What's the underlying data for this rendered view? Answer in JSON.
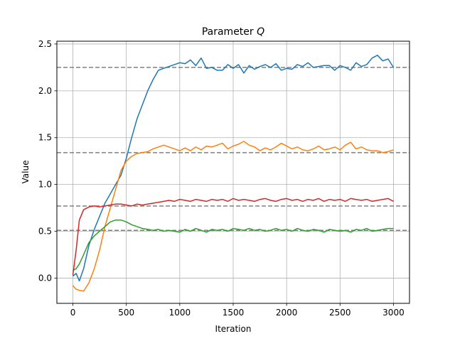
{
  "chart_data": {
    "type": "line",
    "title": "Parameter Q",
    "title_text": "Parameter ",
    "title_symbol": "Q",
    "xlabel": "Iteration",
    "ylabel": "Value",
    "xlim": [
      -150,
      3150
    ],
    "ylim": [
      -0.27,
      2.53
    ],
    "xticks": [
      0,
      500,
      1000,
      1500,
      2000,
      2500,
      3000
    ],
    "yticks": [
      0.0,
      0.5,
      1.0,
      1.5,
      2.0,
      2.5
    ],
    "xtick_labels": [
      "0",
      "500",
      "1000",
      "1500",
      "2000",
      "2500",
      "3000"
    ],
    "ytick_labels": [
      "0.0",
      "0.5",
      "1.0",
      "1.5",
      "2.0",
      "2.5"
    ],
    "grid": true,
    "reference_lines": [
      {
        "y": 2.25,
        "color": "#808080",
        "style": "dashed"
      },
      {
        "y": 1.34,
        "color": "#808080",
        "style": "dashed"
      },
      {
        "y": 0.77,
        "color": "#808080",
        "style": "dashed"
      },
      {
        "y": 0.51,
        "color": "#808080",
        "style": "dashed"
      }
    ],
    "series": [
      {
        "color": "#1f77b4",
        "x": [
          0,
          30,
          60,
          100,
          150,
          200,
          250,
          300,
          350,
          400,
          450,
          500,
          550,
          600,
          650,
          700,
          750,
          800,
          850,
          900,
          950,
          1000,
          1050,
          1100,
          1150,
          1200,
          1250,
          1300,
          1350,
          1400,
          1450,
          1500,
          1550,
          1600,
          1650,
          1700,
          1750,
          1800,
          1850,
          1900,
          1950,
          2000,
          2050,
          2100,
          2150,
          2200,
          2250,
          2300,
          2350,
          2400,
          2450,
          2500,
          2550,
          2600,
          2650,
          2700,
          2750,
          2800,
          2850,
          2900,
          2950,
          3000
        ],
        "y": [
          0.02,
          0.05,
          -0.03,
          0.1,
          0.35,
          0.52,
          0.66,
          0.8,
          0.9,
          1.0,
          1.1,
          1.28,
          1.5,
          1.7,
          1.85,
          2.0,
          2.12,
          2.22,
          2.24,
          2.26,
          2.28,
          2.3,
          2.29,
          2.33,
          2.27,
          2.35,
          2.24,
          2.25,
          2.22,
          2.22,
          2.28,
          2.24,
          2.28,
          2.19,
          2.27,
          2.23,
          2.26,
          2.28,
          2.25,
          2.29,
          2.22,
          2.24,
          2.23,
          2.28,
          2.26,
          2.3,
          2.25,
          2.26,
          2.27,
          2.27,
          2.22,
          2.27,
          2.25,
          2.22,
          2.3,
          2.26,
          2.28,
          2.35,
          2.38,
          2.32,
          2.34,
          2.25
        ]
      },
      {
        "color": "#ff7f0e",
        "x": [
          0,
          30,
          60,
          100,
          150,
          200,
          250,
          300,
          350,
          400,
          450,
          500,
          550,
          600,
          650,
          700,
          750,
          800,
          850,
          900,
          950,
          1000,
          1050,
          1100,
          1150,
          1200,
          1250,
          1300,
          1350,
          1400,
          1450,
          1500,
          1550,
          1600,
          1650,
          1700,
          1750,
          1800,
          1850,
          1900,
          1950,
          2000,
          2050,
          2100,
          2150,
          2200,
          2250,
          2300,
          2350,
          2400,
          2450,
          2500,
          2550,
          2600,
          2650,
          2700,
          2750,
          2800,
          2850,
          2900,
          2950,
          3000
        ],
        "y": [
          -0.08,
          -0.12,
          -0.13,
          -0.14,
          -0.05,
          0.1,
          0.3,
          0.55,
          0.75,
          0.95,
          1.15,
          1.25,
          1.3,
          1.33,
          1.34,
          1.35,
          1.38,
          1.4,
          1.42,
          1.4,
          1.38,
          1.36,
          1.39,
          1.36,
          1.4,
          1.37,
          1.41,
          1.4,
          1.42,
          1.44,
          1.38,
          1.41,
          1.43,
          1.46,
          1.42,
          1.4,
          1.36,
          1.39,
          1.37,
          1.4,
          1.44,
          1.41,
          1.38,
          1.4,
          1.37,
          1.36,
          1.38,
          1.41,
          1.37,
          1.38,
          1.4,
          1.37,
          1.42,
          1.45,
          1.38,
          1.4,
          1.37,
          1.36,
          1.36,
          1.34,
          1.35,
          1.37
        ]
      },
      {
        "color": "#2ca02c",
        "x": [
          0,
          30,
          60,
          100,
          150,
          200,
          250,
          300,
          350,
          400,
          450,
          500,
          550,
          600,
          650,
          700,
          750,
          800,
          850,
          900,
          950,
          1000,
          1050,
          1100,
          1150,
          1200,
          1250,
          1300,
          1350,
          1400,
          1450,
          1500,
          1550,
          1600,
          1650,
          1700,
          1750,
          1800,
          1850,
          1900,
          1950,
          2000,
          2050,
          2100,
          2150,
          2200,
          2250,
          2300,
          2350,
          2400,
          2450,
          2500,
          2550,
          2600,
          2650,
          2700,
          2750,
          2800,
          2850,
          2900,
          2950,
          3000
        ],
        "y": [
          0.08,
          0.1,
          0.15,
          0.25,
          0.38,
          0.45,
          0.5,
          0.55,
          0.6,
          0.62,
          0.62,
          0.6,
          0.57,
          0.55,
          0.53,
          0.52,
          0.51,
          0.52,
          0.5,
          0.51,
          0.5,
          0.49,
          0.52,
          0.5,
          0.53,
          0.51,
          0.49,
          0.52,
          0.51,
          0.52,
          0.5,
          0.53,
          0.52,
          0.51,
          0.53,
          0.51,
          0.52,
          0.5,
          0.51,
          0.53,
          0.51,
          0.52,
          0.5,
          0.53,
          0.51,
          0.5,
          0.52,
          0.51,
          0.49,
          0.52,
          0.51,
          0.5,
          0.51,
          0.49,
          0.52,
          0.51,
          0.53,
          0.5,
          0.51,
          0.52,
          0.53,
          0.53
        ]
      },
      {
        "color": "#d62728",
        "x": [
          0,
          30,
          60,
          100,
          150,
          200,
          250,
          300,
          350,
          400,
          450,
          500,
          550,
          600,
          650,
          700,
          750,
          800,
          850,
          900,
          950,
          1000,
          1050,
          1100,
          1150,
          1200,
          1250,
          1300,
          1350,
          1400,
          1450,
          1500,
          1550,
          1600,
          1650,
          1700,
          1750,
          1800,
          1850,
          1900,
          1950,
          2000,
          2050,
          2100,
          2150,
          2200,
          2250,
          2300,
          2350,
          2400,
          2450,
          2500,
          2550,
          2600,
          2650,
          2700,
          2750,
          2800,
          2850,
          2900,
          2950,
          3000
        ],
        "y": [
          0.03,
          0.3,
          0.62,
          0.73,
          0.76,
          0.77,
          0.76,
          0.77,
          0.78,
          0.79,
          0.79,
          0.78,
          0.77,
          0.79,
          0.78,
          0.79,
          0.8,
          0.81,
          0.82,
          0.83,
          0.82,
          0.84,
          0.83,
          0.82,
          0.84,
          0.83,
          0.82,
          0.84,
          0.83,
          0.84,
          0.82,
          0.85,
          0.83,
          0.84,
          0.83,
          0.82,
          0.84,
          0.85,
          0.83,
          0.82,
          0.84,
          0.85,
          0.83,
          0.84,
          0.82,
          0.84,
          0.83,
          0.85,
          0.82,
          0.84,
          0.83,
          0.84,
          0.82,
          0.85,
          0.84,
          0.83,
          0.84,
          0.82,
          0.83,
          0.84,
          0.85,
          0.82
        ]
      }
    ]
  }
}
